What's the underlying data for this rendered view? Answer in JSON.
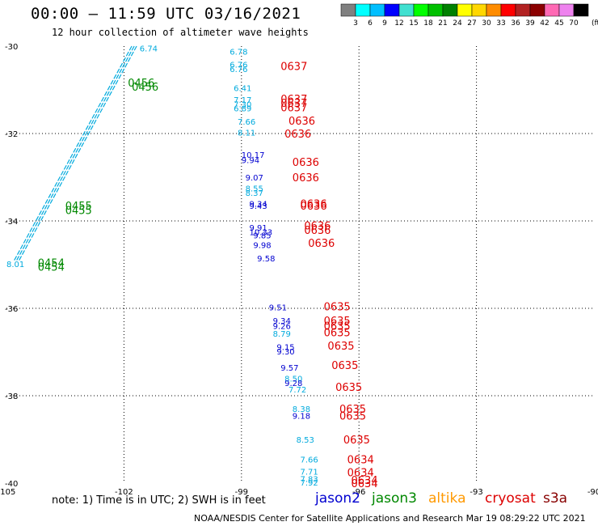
{
  "title": "00:00 – 11:59 UTC 03/16/2021",
  "subtitle": "12 hour collection of altimeter wave heights",
  "note": "note: 1) Time is in UTC; 2) SWH is in feet",
  "footer": "NOAA/NESDIS Center for Satellite Applications and Research   Mar 19 08:29:22 UTC 2021",
  "legend": [
    {
      "label": "jason2",
      "color": "#0000d0"
    },
    {
      "label": "jason3",
      "color": "#008800"
    },
    {
      "label": "altika",
      "color": "#ff9900"
    },
    {
      "label": "cryosat",
      "color": "#dd0000"
    },
    {
      "label": "s3a",
      "color": "#880000"
    }
  ],
  "colorbar": {
    "unit": "(ft)",
    "labels": [
      "3",
      "6",
      "9",
      "12",
      "15",
      "18",
      "21",
      "24",
      "27",
      "30",
      "33",
      "36",
      "39",
      "42",
      "45",
      "70"
    ],
    "colors": [
      "#808080",
      "#00ffff",
      "#00bfff",
      "#0000ff",
      "#40e0d0",
      "#00ff00",
      "#00c000",
      "#008000",
      "#ffff00",
      "#ffd700",
      "#ff8c00",
      "#ff0000",
      "#b22222",
      "#8b0000",
      "#ff69b4",
      "#ee82ee",
      "#000000"
    ]
  },
  "chart_data": {
    "type": "scatter",
    "xlabel": "",
    "ylabel": "",
    "xlim": [
      -105,
      -90
    ],
    "ylim": [
      -40,
      -30
    ],
    "xticks": [
      "-105",
      "-102",
      "-99",
      "-96",
      "-93",
      "-90"
    ],
    "yticks": [
      "-30",
      "-32",
      "-34",
      "-36",
      "-38",
      "-40"
    ],
    "grid": true,
    "time_labels": [
      {
        "text": "0456",
        "lon": -101.9,
        "lat": -30.83,
        "color": "#008800"
      },
      {
        "text": "0456",
        "lon": -101.8,
        "lat": -30.93,
        "color": "#008800"
      },
      {
        "text": "0455",
        "lon": -103.5,
        "lat": -33.65,
        "color": "#008800"
      },
      {
        "text": "0455",
        "lon": -103.5,
        "lat": -33.75,
        "color": "#008800"
      },
      {
        "text": "0454",
        "lon": -104.2,
        "lat": -34.95,
        "color": "#008800"
      },
      {
        "text": "0454",
        "lon": -104.2,
        "lat": -35.05,
        "color": "#008800"
      },
      {
        "text": "0637",
        "lon": -98.0,
        "lat": -30.45,
        "color": "#dd0000"
      },
      {
        "text": "0637",
        "lon": -98.0,
        "lat": -31.2,
        "color": "#dd0000"
      },
      {
        "text": "0637",
        "lon": -98.0,
        "lat": -31.3,
        "color": "#dd0000"
      },
      {
        "text": "0637",
        "lon": -98.0,
        "lat": -31.4,
        "color": "#dd0000"
      },
      {
        "text": "0636",
        "lon": -97.8,
        "lat": -31.7,
        "color": "#dd0000"
      },
      {
        "text": "0636",
        "lon": -97.9,
        "lat": -32.0,
        "color": "#dd0000"
      },
      {
        "text": "0636",
        "lon": -97.7,
        "lat": -32.65,
        "color": "#dd0000"
      },
      {
        "text": "0636",
        "lon": -97.7,
        "lat": -33.0,
        "color": "#dd0000"
      },
      {
        "text": "0636",
        "lon": -97.5,
        "lat": -33.6,
        "color": "#dd0000"
      },
      {
        "text": "0636",
        "lon": -97.5,
        "lat": -33.65,
        "color": "#dd0000"
      },
      {
        "text": "0636",
        "lon": -97.4,
        "lat": -34.1,
        "color": "#dd0000"
      },
      {
        "text": "0636",
        "lon": -97.4,
        "lat": -34.2,
        "color": "#dd0000"
      },
      {
        "text": "0636",
        "lon": -97.3,
        "lat": -34.5,
        "color": "#dd0000"
      },
      {
        "text": "0635",
        "lon": -96.9,
        "lat": -35.95,
        "color": "#dd0000"
      },
      {
        "text": "0635",
        "lon": -96.9,
        "lat": -36.28,
        "color": "#dd0000"
      },
      {
        "text": "0635",
        "lon": -96.9,
        "lat": -36.4,
        "color": "#dd0000"
      },
      {
        "text": "0635",
        "lon": -96.9,
        "lat": -36.55,
        "color": "#dd0000"
      },
      {
        "text": "0635",
        "lon": -96.8,
        "lat": -36.85,
        "color": "#dd0000"
      },
      {
        "text": "0635",
        "lon": -96.7,
        "lat": -37.3,
        "color": "#dd0000"
      },
      {
        "text": "0635",
        "lon": -96.6,
        "lat": -37.8,
        "color": "#dd0000"
      },
      {
        "text": "0635",
        "lon": -96.5,
        "lat": -38.3,
        "color": "#dd0000"
      },
      {
        "text": "0635",
        "lon": -96.5,
        "lat": -38.45,
        "color": "#dd0000"
      },
      {
        "text": "0635",
        "lon": -96.4,
        "lat": -39.0,
        "color": "#dd0000"
      },
      {
        "text": "0634",
        "lon": -96.3,
        "lat": -39.45,
        "color": "#dd0000"
      },
      {
        "text": "0634",
        "lon": -96.3,
        "lat": -39.75,
        "color": "#dd0000"
      },
      {
        "text": "0634",
        "lon": -96.2,
        "lat": -39.93,
        "color": "#dd0000"
      },
      {
        "text": "0634",
        "lon": -96.2,
        "lat": -40.0,
        "color": "#dd0000"
      }
    ],
    "swh_points": [
      {
        "v": "6.78",
        "lon": -99.3,
        "lat": -30.12,
        "color": "#00aadd"
      },
      {
        "v": "6.76",
        "lon": -99.3,
        "lat": -30.42,
        "color": "#00aadd"
      },
      {
        "v": "6.76",
        "lon": -99.3,
        "lat": -30.52,
        "color": "#00aadd"
      },
      {
        "v": "6.41",
        "lon": -99.2,
        "lat": -30.95,
        "color": "#00aadd"
      },
      {
        "v": "7.17",
        "lon": -99.2,
        "lat": -31.22,
        "color": "#00aadd"
      },
      {
        "v": "7.30",
        "lon": -99.2,
        "lat": -31.32,
        "color": "#00aadd"
      },
      {
        "v": "6.89",
        "lon": -99.2,
        "lat": -31.42,
        "color": "#00aadd"
      },
      {
        "v": "7.66",
        "lon": -99.1,
        "lat": -31.72,
        "color": "#00aadd"
      },
      {
        "v": "8.11",
        "lon": -99.1,
        "lat": -31.97,
        "color": "#00aadd"
      },
      {
        "v": "10.17",
        "lon": -99.0,
        "lat": -32.48,
        "color": "#0000d0"
      },
      {
        "v": "9.94",
        "lon": -99.0,
        "lat": -32.6,
        "color": "#0000d0"
      },
      {
        "v": "9.07",
        "lon": -98.9,
        "lat": -33.0,
        "color": "#0000d0"
      },
      {
        "v": "8.55",
        "lon": -98.9,
        "lat": -33.25,
        "color": "#00aadd"
      },
      {
        "v": "8.37",
        "lon": -98.9,
        "lat": -33.35,
        "color": "#00aadd"
      },
      {
        "v": "9.34",
        "lon": -98.8,
        "lat": -33.6,
        "color": "#0000d0"
      },
      {
        "v": "9.43",
        "lon": -98.8,
        "lat": -33.65,
        "color": "#0000d0"
      },
      {
        "v": "9.91",
        "lon": -98.8,
        "lat": -34.15,
        "color": "#0000d0"
      },
      {
        "v": "10.33",
        "lon": -98.8,
        "lat": -34.25,
        "color": "#0000d0"
      },
      {
        "v": "9.85",
        "lon": -98.7,
        "lat": -34.32,
        "color": "#0000d0"
      },
      {
        "v": "9.98",
        "lon": -98.7,
        "lat": -34.55,
        "color": "#0000d0"
      },
      {
        "v": "9.58",
        "lon": -98.6,
        "lat": -34.85,
        "color": "#0000d0"
      },
      {
        "v": "9.51",
        "lon": -98.3,
        "lat": -35.97,
        "color": "#0000d0"
      },
      {
        "v": "9.34",
        "lon": -98.2,
        "lat": -36.28,
        "color": "#0000d0"
      },
      {
        "v": "9.26",
        "lon": -98.2,
        "lat": -36.4,
        "color": "#0000d0"
      },
      {
        "v": "8.79",
        "lon": -98.2,
        "lat": -36.57,
        "color": "#00aadd"
      },
      {
        "v": "9.15",
        "lon": -98.1,
        "lat": -36.88,
        "color": "#0000d0"
      },
      {
        "v": "9.30",
        "lon": -98.1,
        "lat": -36.98,
        "color": "#0000d0"
      },
      {
        "v": "9.57",
        "lon": -98.0,
        "lat": -37.35,
        "color": "#0000d0"
      },
      {
        "v": "8.50",
        "lon": -97.9,
        "lat": -37.6,
        "color": "#00aadd"
      },
      {
        "v": "9.28",
        "lon": -97.9,
        "lat": -37.7,
        "color": "#0000d0"
      },
      {
        "v": "7.72",
        "lon": -97.8,
        "lat": -37.85,
        "color": "#00aadd"
      },
      {
        "v": "8.38",
        "lon": -97.7,
        "lat": -38.3,
        "color": "#00aadd"
      },
      {
        "v": "9.18",
        "lon": -97.7,
        "lat": -38.45,
        "color": "#0000d0"
      },
      {
        "v": "8.53",
        "lon": -97.6,
        "lat": -39.0,
        "color": "#00aadd"
      },
      {
        "v": "7.66",
        "lon": -97.5,
        "lat": -39.45,
        "color": "#00aadd"
      },
      {
        "v": "7.71",
        "lon": -97.5,
        "lat": -39.73,
        "color": "#00aadd"
      },
      {
        "v": "7.83",
        "lon": -97.5,
        "lat": -39.9,
        "color": "#00aadd"
      },
      {
        "v": "7.92",
        "lon": -97.5,
        "lat": -39.98,
        "color": "#00aadd"
      },
      {
        "v": "6.74",
        "lon": -101.6,
        "lat": -30.05,
        "color": "#00aadd"
      },
      {
        "v": "8.01",
        "lon": -105.0,
        "lat": -34.98,
        "color": "#00aadd"
      }
    ],
    "track": {
      "color": "#00aadd",
      "from": {
        "lon": -101.8,
        "lat": -30.0
      },
      "to": {
        "lon": -104.8,
        "lat": -34.9
      }
    }
  }
}
